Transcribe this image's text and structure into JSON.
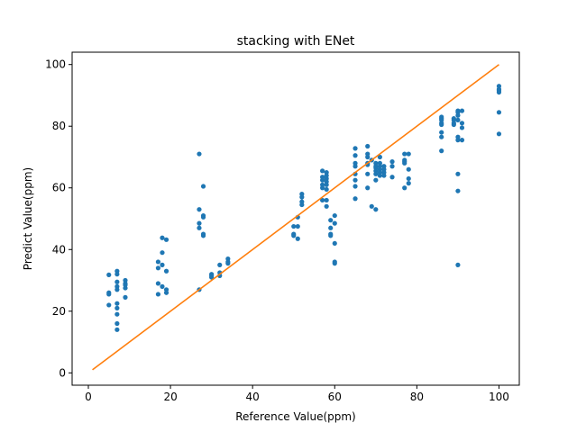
{
  "chart_data": {
    "type": "scatter",
    "title": "stacking with ENet",
    "xlabel": "Reference Value(ppm)",
    "ylabel": "Predict Value(ppm)",
    "xlim": [
      -3.95,
      104.95
    ],
    "ylim": [
      -4.0,
      104.0
    ],
    "xticks": [
      0,
      20,
      40,
      60,
      80,
      100
    ],
    "yticks": [
      0,
      20,
      40,
      60,
      80,
      100
    ],
    "grid": false,
    "legend": "none",
    "colors": {
      "points": "#1f77b4",
      "line": "#ff7f0e"
    },
    "line": {
      "x": [
        1,
        100
      ],
      "y": [
        1,
        100
      ]
    },
    "points": [
      [
        5,
        31.8
      ],
      [
        5,
        26
      ],
      [
        5,
        25.5
      ],
      [
        5,
        22
      ],
      [
        7,
        33
      ],
      [
        7,
        32
      ],
      [
        7,
        29.5
      ],
      [
        7,
        28
      ],
      [
        7,
        27
      ],
      [
        7,
        22.5
      ],
      [
        7,
        21
      ],
      [
        7,
        19
      ],
      [
        7,
        16
      ],
      [
        7,
        14
      ],
      [
        9,
        30
      ],
      [
        9,
        29
      ],
      [
        9,
        28.5
      ],
      [
        9,
        27.5
      ],
      [
        9,
        24.5
      ],
      [
        17,
        36
      ],
      [
        17,
        34
      ],
      [
        17,
        29
      ],
      [
        17,
        25.5
      ],
      [
        18,
        43.8
      ],
      [
        18,
        39
      ],
      [
        18,
        35
      ],
      [
        18,
        28
      ],
      [
        19,
        43.2
      ],
      [
        19,
        33
      ],
      [
        19,
        27
      ],
      [
        19,
        26
      ],
      [
        27,
        71
      ],
      [
        27,
        53
      ],
      [
        27,
        48.5
      ],
      [
        27,
        47
      ],
      [
        27,
        27
      ],
      [
        28,
        60.5
      ],
      [
        28,
        51
      ],
      [
        28,
        50.5
      ],
      [
        28,
        45
      ],
      [
        28,
        44.5
      ],
      [
        30,
        32
      ],
      [
        30,
        31.5
      ],
      [
        30,
        31
      ],
      [
        32,
        35
      ],
      [
        32,
        32.5
      ],
      [
        32,
        31.5
      ],
      [
        34,
        37
      ],
      [
        34,
        36
      ],
      [
        34,
        35.5
      ],
      [
        50,
        47.5
      ],
      [
        50,
        45
      ],
      [
        50,
        44.5
      ],
      [
        51,
        50.5
      ],
      [
        51,
        47.5
      ],
      [
        51,
        43.5
      ],
      [
        52,
        58
      ],
      [
        52,
        57
      ],
      [
        52,
        55.5
      ],
      [
        52,
        54.5
      ],
      [
        57,
        65.5
      ],
      [
        57,
        63.5
      ],
      [
        57,
        62.5
      ],
      [
        57,
        61
      ],
      [
        57,
        60
      ],
      [
        57,
        56
      ],
      [
        58,
        65
      ],
      [
        58,
        64
      ],
      [
        58,
        63
      ],
      [
        58,
        62
      ],
      [
        58,
        61
      ],
      [
        58,
        59.5
      ],
      [
        58,
        56
      ],
      [
        58,
        54
      ],
      [
        59,
        49.5
      ],
      [
        59,
        47
      ],
      [
        59,
        45
      ],
      [
        59,
        44.5
      ],
      [
        60,
        51
      ],
      [
        60,
        48.5
      ],
      [
        60,
        42
      ],
      [
        60,
        36
      ],
      [
        60,
        35.5
      ],
      [
        65,
        72.8
      ],
      [
        65,
        70.5
      ],
      [
        65,
        68
      ],
      [
        65,
        67
      ],
      [
        65,
        64.5
      ],
      [
        65,
        62.5
      ],
      [
        65,
        60.5
      ],
      [
        65,
        56.5
      ],
      [
        68,
        73.5
      ],
      [
        68,
        71
      ],
      [
        68,
        70
      ],
      [
        68,
        68
      ],
      [
        68,
        67.5
      ],
      [
        68,
        64.5
      ],
      [
        68,
        60
      ],
      [
        69,
        69
      ],
      [
        69,
        54
      ],
      [
        70,
        68
      ],
      [
        70,
        67
      ],
      [
        70,
        66.5
      ],
      [
        70,
        65.5
      ],
      [
        70,
        64.5
      ],
      [
        70,
        62.5
      ],
      [
        70,
        53
      ],
      [
        71,
        70
      ],
      [
        71,
        68
      ],
      [
        71,
        67
      ],
      [
        71,
        66
      ],
      [
        71,
        65
      ],
      [
        71,
        64
      ],
      [
        72,
        67
      ],
      [
        72,
        66
      ],
      [
        72,
        65
      ],
      [
        72,
        64
      ],
      [
        74,
        68.5
      ],
      [
        74,
        67
      ],
      [
        74,
        63.5
      ],
      [
        77,
        71
      ],
      [
        77,
        69
      ],
      [
        77,
        68.5
      ],
      [
        77,
        68
      ],
      [
        77,
        60
      ],
      [
        78,
        71
      ],
      [
        78,
        66
      ],
      [
        78,
        63
      ],
      [
        78,
        61.5
      ],
      [
        86,
        83
      ],
      [
        86,
        82.5
      ],
      [
        86,
        82
      ],
      [
        86,
        81
      ],
      [
        86,
        80.5
      ],
      [
        86,
        78
      ],
      [
        86,
        76.5
      ],
      [
        86,
        72
      ],
      [
        89,
        82.5
      ],
      [
        89,
        82
      ],
      [
        89,
        81
      ],
      [
        89,
        80.5
      ],
      [
        90,
        85
      ],
      [
        90,
        84.5
      ],
      [
        90,
        83.5
      ],
      [
        90,
        82
      ],
      [
        90,
        76.5
      ],
      [
        90,
        75.5
      ],
      [
        90,
        64.5
      ],
      [
        90,
        59
      ],
      [
        90,
        35
      ],
      [
        91,
        85
      ],
      [
        91,
        81
      ],
      [
        91,
        79.5
      ],
      [
        91,
        75.5
      ],
      [
        100,
        93
      ],
      [
        100,
        92
      ],
      [
        100,
        91.5
      ],
      [
        100,
        91
      ],
      [
        100,
        84.5
      ],
      [
        100,
        77.5
      ]
    ]
  }
}
